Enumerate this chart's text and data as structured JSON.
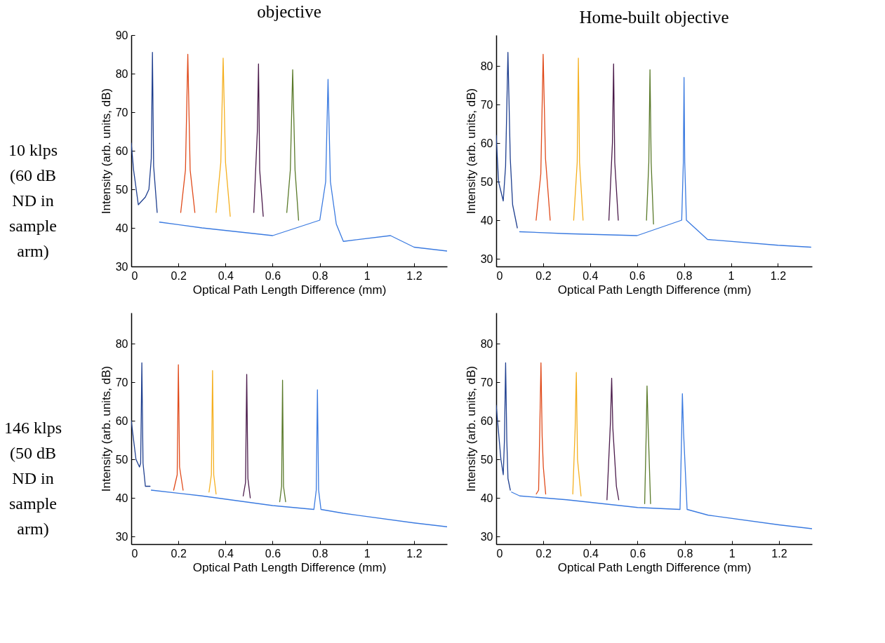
{
  "chart_data": [
    {
      "type": "line",
      "title": "objective",
      "annotations": [
        "10 klps (60 dB ND in sample arm)"
      ],
      "xlabel": "Optical Path Length Difference (mm)",
      "ylabel": "Intensity (arb. units, dB)",
      "xlim": [
        0,
        1.34
      ],
      "ylim": [
        30,
        90
      ],
      "xticks": [
        0,
        0.2,
        0.4,
        0.6,
        0.8,
        1,
        1.2
      ],
      "yticks": [
        30,
        40,
        50,
        60,
        70,
        80,
        90
      ],
      "series": [
        {
          "color": "#1f3f8f",
          "x": [
            0,
            0.01,
            0.03,
            0.06,
            0.075,
            0.085,
            0.09,
            0.095,
            0.11
          ],
          "values": [
            62,
            55,
            46,
            48,
            50,
            58,
            85.5,
            56,
            44
          ]
        },
        {
          "color": "#e04a1a",
          "x": [
            0.21,
            0.23,
            0.24,
            0.25,
            0.27
          ],
          "values": [
            44,
            55,
            85,
            55,
            44
          ]
        },
        {
          "color": "#f5b020",
          "x": [
            0.36,
            0.38,
            0.39,
            0.4,
            0.42
          ],
          "values": [
            44,
            57,
            84,
            57,
            43
          ]
        },
        {
          "color": "#4a1a4a",
          "x": [
            0.52,
            0.535,
            0.54,
            0.545,
            0.56
          ],
          "values": [
            44,
            65,
            82.5,
            55,
            43
          ]
        },
        {
          "color": "#5a7a2a",
          "x": [
            0.66,
            0.675,
            0.685,
            0.695,
            0.71
          ],
          "values": [
            44,
            55,
            81,
            55,
            42
          ]
        },
        {
          "color": "#3a7ae0",
          "x": [
            0.12,
            0.3,
            0.6,
            0.8,
            0.825,
            0.835,
            0.845,
            0.87,
            0.9,
            1.1,
            1.2,
            1.34
          ],
          "values": [
            41.5,
            40,
            38,
            42,
            52,
            78.5,
            52,
            41,
            36.5,
            38,
            35,
            34
          ]
        }
      ]
    },
    {
      "type": "line",
      "title": "Home-built objective",
      "xlabel": "Optical Path Length Difference (mm)",
      "ylabel": "Intensity (arb. units, dB)",
      "xlim": [
        0,
        1.345
      ],
      "ylim": [
        28,
        88
      ],
      "xticks": [
        0,
        0.2,
        0.4,
        0.6,
        0.8,
        1,
        1.2
      ],
      "yticks": [
        30,
        40,
        50,
        60,
        70,
        80
      ],
      "series": [
        {
          "color": "#1f3f8f",
          "x": [
            0,
            0.01,
            0.03,
            0.04,
            0.05,
            0.06,
            0.07,
            0.09
          ],
          "values": [
            62,
            50,
            45,
            54,
            83.5,
            56,
            44,
            38
          ]
        },
        {
          "color": "#e04a1a",
          "x": [
            0.17,
            0.19,
            0.2,
            0.21,
            0.23
          ],
          "values": [
            40,
            52,
            83,
            56,
            40
          ]
        },
        {
          "color": "#f5b020",
          "x": [
            0.33,
            0.345,
            0.35,
            0.355,
            0.37
          ],
          "values": [
            40,
            55,
            82,
            55,
            40
          ]
        },
        {
          "color": "#4a1a4a",
          "x": [
            0.48,
            0.495,
            0.5,
            0.505,
            0.52
          ],
          "values": [
            40,
            60,
            80.5,
            55,
            40
          ]
        },
        {
          "color": "#5a7a2a",
          "x": [
            0.64,
            0.65,
            0.655,
            0.66,
            0.67
          ],
          "values": [
            40,
            55,
            79,
            55,
            39
          ]
        },
        {
          "color": "#3a7ae0",
          "x": [
            0.1,
            0.3,
            0.6,
            0.79,
            0.797,
            0.8,
            0.803,
            0.81,
            0.9,
            1.2,
            1.34
          ],
          "values": [
            37,
            36.5,
            36,
            40,
            55,
            77,
            55,
            40,
            35,
            33.5,
            33
          ]
        }
      ]
    },
    {
      "type": "line",
      "annotations": [
        "146 klps (50 dB ND in sample arm)"
      ],
      "xlabel": "Optical Path Length Difference (mm)",
      "ylabel": "Intensity (arb. units, dB)",
      "xlim": [
        0,
        1.34
      ],
      "ylim": [
        28,
        88
      ],
      "xticks": [
        0,
        0.2,
        0.4,
        0.6,
        0.8,
        1,
        1.2
      ],
      "yticks": [
        30,
        40,
        50,
        60,
        70,
        80
      ],
      "series": [
        {
          "color": "#1f3f8f",
          "x": [
            0,
            0.02,
            0.035,
            0.04,
            0.045,
            0.05,
            0.06,
            0.08
          ],
          "values": [
            60,
            50,
            48,
            49,
            75,
            49,
            43,
            43
          ]
        },
        {
          "color": "#e04a1a",
          "x": [
            0.18,
            0.195,
            0.2,
            0.205,
            0.22
          ],
          "values": [
            42,
            46,
            74.5,
            48,
            42
          ]
        },
        {
          "color": "#f5b020",
          "x": [
            0.33,
            0.34,
            0.345,
            0.35,
            0.36
          ],
          "values": [
            41.5,
            46,
            73,
            46,
            41
          ]
        },
        {
          "color": "#4a1a4a",
          "x": [
            0.475,
            0.485,
            0.49,
            0.495,
            0.505
          ],
          "values": [
            40.5,
            44,
            72,
            45,
            40
          ]
        },
        {
          "color": "#5a7a2a",
          "x": [
            0.63,
            0.638,
            0.642,
            0.646,
            0.655
          ],
          "values": [
            39,
            43,
            70.5,
            43,
            39
          ]
        },
        {
          "color": "#3a7ae0",
          "x": [
            0.085,
            0.3,
            0.6,
            0.775,
            0.785,
            0.79,
            0.795,
            0.805,
            0.9,
            1.2,
            1.34
          ],
          "values": [
            42,
            40.5,
            38,
            37,
            42,
            68,
            42,
            37,
            36,
            33.5,
            32.5
          ]
        }
      ]
    },
    {
      "type": "line",
      "xlabel": "Optical Path Length Difference (mm)",
      "ylabel": "Intensity (arb. units, dB)",
      "xlim": [
        0,
        1.34
      ],
      "ylim": [
        28,
        88
      ],
      "xticks": [
        0,
        0.2,
        0.4,
        0.6,
        0.8,
        1,
        1.2
      ],
      "yticks": [
        30,
        40,
        50,
        60,
        70,
        80
      ],
      "series": [
        {
          "color": "#1f3f8f",
          "x": [
            0,
            0.02,
            0.03,
            0.035,
            0.04,
            0.045,
            0.05,
            0.06
          ],
          "values": [
            64,
            50,
            46,
            55,
            75,
            55,
            45,
            42
          ]
        },
        {
          "color": "#e04a1a",
          "x": [
            0.17,
            0.18,
            0.185,
            0.19,
            0.195,
            0.2,
            0.21
          ],
          "values": [
            41,
            42,
            58,
            75,
            56,
            48,
            41
          ]
        },
        {
          "color": "#f5b020",
          "x": [
            0.325,
            0.335,
            0.34,
            0.345,
            0.36
          ],
          "values": [
            41,
            58,
            72.5,
            50,
            40.5
          ]
        },
        {
          "color": "#4a1a4a",
          "x": [
            0.47,
            0.485,
            0.49,
            0.495,
            0.51,
            0.52
          ],
          "values": [
            39.5,
            60,
            71,
            58,
            43,
            39.5
          ]
        },
        {
          "color": "#5a7a2a",
          "x": [
            0.63,
            0.637,
            0.64,
            0.645,
            0.655
          ],
          "values": [
            38.5,
            58,
            69,
            58,
            38.5
          ]
        },
        {
          "color": "#3a7ae0",
          "x": [
            0.065,
            0.1,
            0.3,
            0.6,
            0.78,
            0.787,
            0.79,
            0.795,
            0.81,
            0.9,
            1.2,
            1.34
          ],
          "values": [
            41.5,
            40.5,
            39.5,
            37.5,
            37,
            57,
            67,
            57,
            37,
            35.5,
            33,
            32
          ]
        }
      ]
    }
  ]
}
